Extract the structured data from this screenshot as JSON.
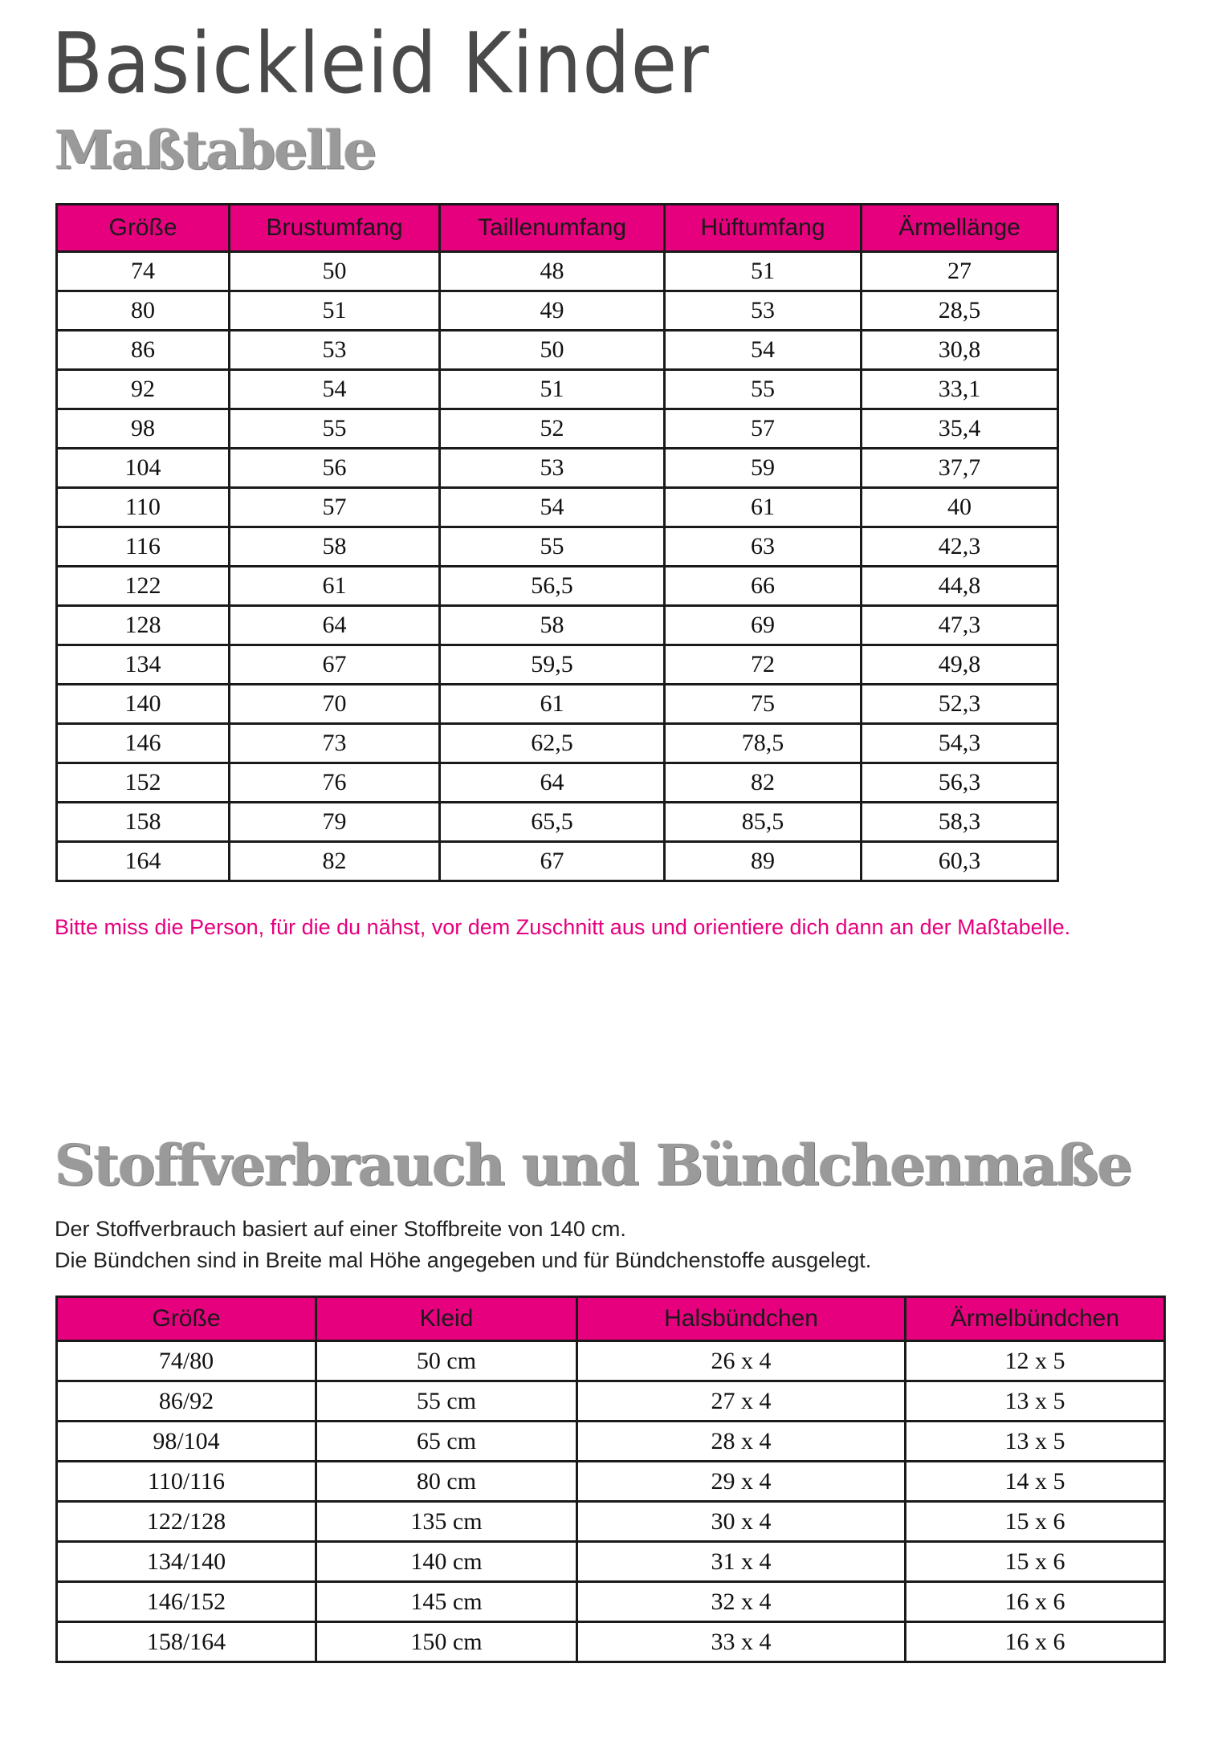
{
  "title": "Basickleid Kinder",
  "section1": {
    "heading": "Maßtabelle",
    "columns": [
      "Größe",
      "Brustumfang",
      "Taillenumfang",
      "Hüftumfang",
      "Ärmellänge"
    ],
    "rows": [
      [
        "74",
        "50",
        "48",
        "51",
        "27"
      ],
      [
        "80",
        "51",
        "49",
        "53",
        "28,5"
      ],
      [
        "86",
        "53",
        "50",
        "54",
        "30,8"
      ],
      [
        "92",
        "54",
        "51",
        "55",
        "33,1"
      ],
      [
        "98",
        "55",
        "52",
        "57",
        "35,4"
      ],
      [
        "104",
        "56",
        "53",
        "59",
        "37,7"
      ],
      [
        "110",
        "57",
        "54",
        "61",
        "40"
      ],
      [
        "116",
        "58",
        "55",
        "63",
        "42,3"
      ],
      [
        "122",
        "61",
        "56,5",
        "66",
        "44,8"
      ],
      [
        "128",
        "64",
        "58",
        "69",
        "47,3"
      ],
      [
        "134",
        "67",
        "59,5",
        "72",
        "49,8"
      ],
      [
        "140",
        "70",
        "61",
        "75",
        "52,3"
      ],
      [
        "146",
        "73",
        "62,5",
        "78,5",
        "54,3"
      ],
      [
        "152",
        "76",
        "64",
        "82",
        "56,3"
      ],
      [
        "158",
        "79",
        "65,5",
        "85,5",
        "58,3"
      ],
      [
        "164",
        "82",
        "67",
        "89",
        "60,3"
      ]
    ],
    "note": "Bitte miss die Person, für die du nähst, vor dem Zuschnitt aus und orientiere dich dann an der Maßtabelle."
  },
  "section2": {
    "heading": "Stoffverbrauch und Bündchenmaße",
    "paragraph1": "Der Stoffverbrauch basiert auf einer Stoffbreite von 140 cm.",
    "paragraph2": "Die Bündchen sind in Breite mal Höhe angegeben und für Bündchenstoffe ausgelegt.",
    "columns": [
      "Größe",
      "Kleid",
      "Halsbündchen",
      "Ärmelbündchen"
    ],
    "rows": [
      [
        "74/80",
        "50 cm",
        "26 x 4",
        "12 x 5"
      ],
      [
        "86/92",
        "55 cm",
        "27 x 4",
        "13 x 5"
      ],
      [
        "98/104",
        "65 cm",
        "28 x 4",
        "13 x 5"
      ],
      [
        "110/116",
        "80 cm",
        "29 x 4",
        "14 x 5"
      ],
      [
        "122/128",
        "135 cm",
        "30 x 4",
        "15 x 6"
      ],
      [
        "134/140",
        "140 cm",
        "31 x 4",
        "15 x 6"
      ],
      [
        "146/152",
        "145 cm",
        "32 x 4",
        "16 x 6"
      ],
      [
        "158/164",
        "150 cm",
        "33 x 4",
        "16 x 6"
      ]
    ]
  },
  "colors": {
    "accent": "#e6007e",
    "heading": "#9a9a9a",
    "title": "#4a4a4a"
  }
}
